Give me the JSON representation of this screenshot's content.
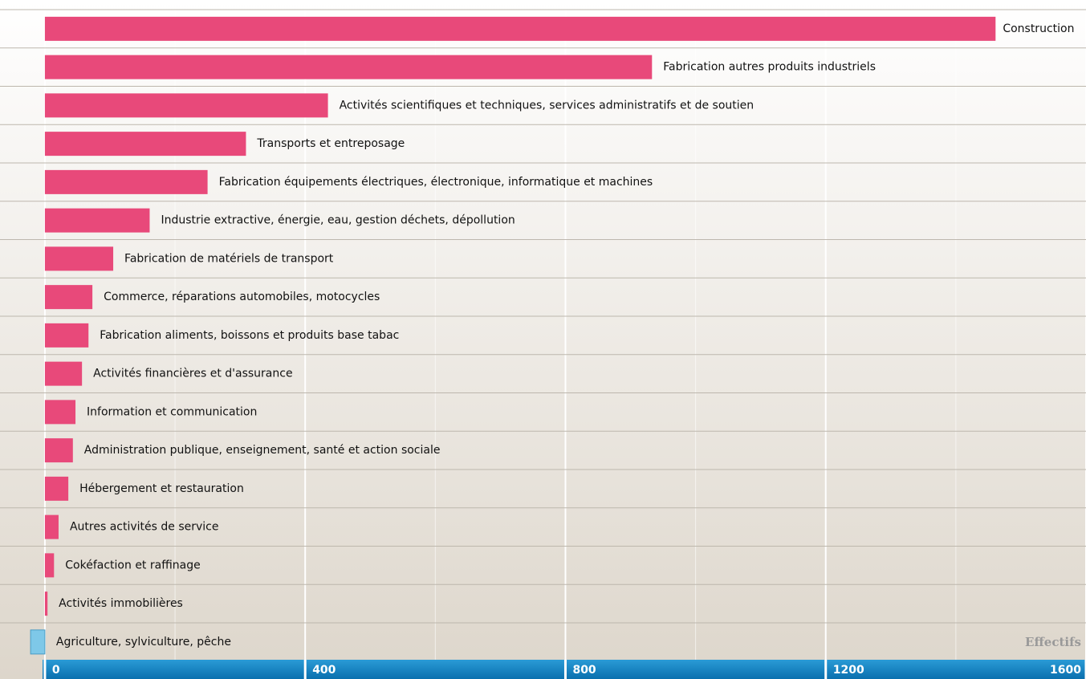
{
  "chart_data": {
    "type": "barh",
    "categories": [
      "Construction",
      "Fabrication autres produits industriels",
      "Activités scientifiques et techniques, services administratifs et de soutien",
      "Transports et entreposage",
      "Fabrication équipements électriques, électronique, informatique et machines",
      "Industrie extractive, énergie, eau, gestion déchets, dépollution",
      "Fabrication de matériels de transport",
      "Commerce, réparations automobiles, motocycles",
      "Fabrication aliments, boissons et produits base tabac",
      "Activités financières et d'assurance",
      "Information et communication",
      "Administration publique, enseignement, santé et action sociale",
      "Hébergement et restauration",
      "Autres activités de service",
      "Cokéfaction et raffinage",
      "Activités immobilières",
      "Agriculture, sylviculture, pêche"
    ],
    "values": [
      1461,
      933,
      435,
      309,
      250,
      161,
      105,
      73,
      67,
      57,
      47,
      43,
      36,
      21,
      14,
      4,
      -22
    ],
    "color": "#e8497a",
    "negative_color": "#7ec8e8",
    "xlabel": "Effectifs",
    "xlim": [
      -69,
      1600
    ],
    "xticks": [
      0,
      400,
      800,
      1200,
      1600
    ],
    "xminor": [
      200,
      600,
      1000,
      1400
    ],
    "grid": true
  }
}
